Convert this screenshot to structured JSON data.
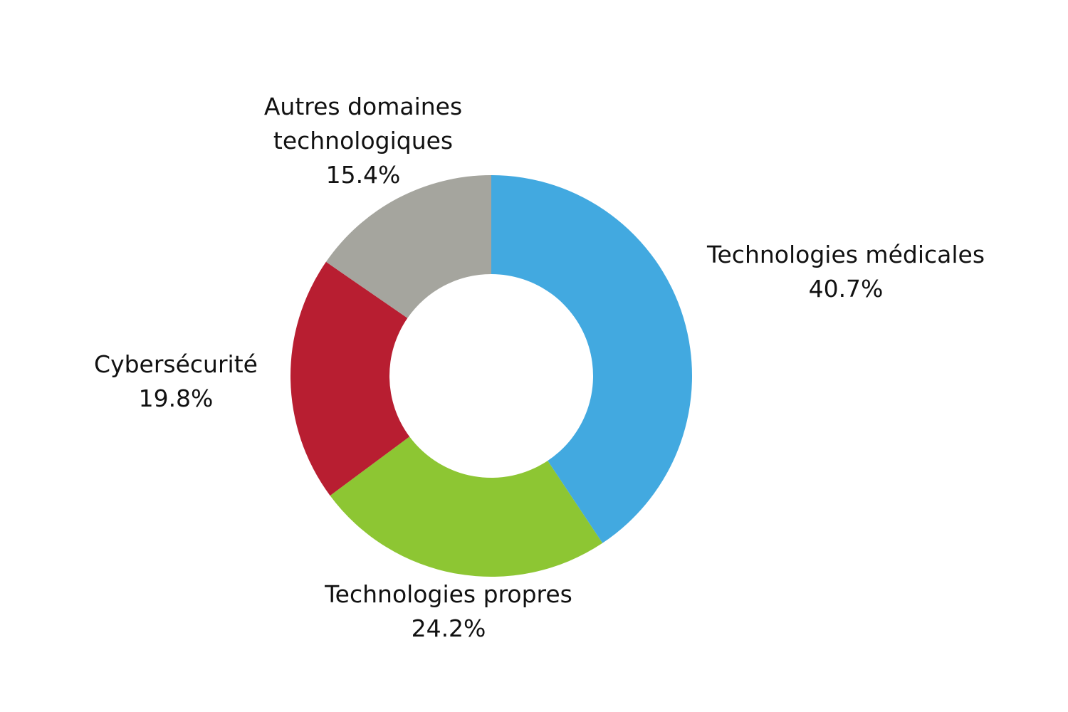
{
  "chart_data": {
    "type": "donut",
    "categories": [
      "Technologies médicales",
      "Technologies propres",
      "Cybersécurité",
      "Autres domaines technologiques"
    ],
    "values": [
      40.7,
      24.2,
      19.8,
      15.4
    ],
    "value_labels": [
      "40.7%",
      "24.2%",
      "19.8%",
      "15.4%"
    ],
    "colors": [
      "#42a9e0",
      "#8dc633",
      "#b81e31",
      "#a5a59e"
    ]
  }
}
